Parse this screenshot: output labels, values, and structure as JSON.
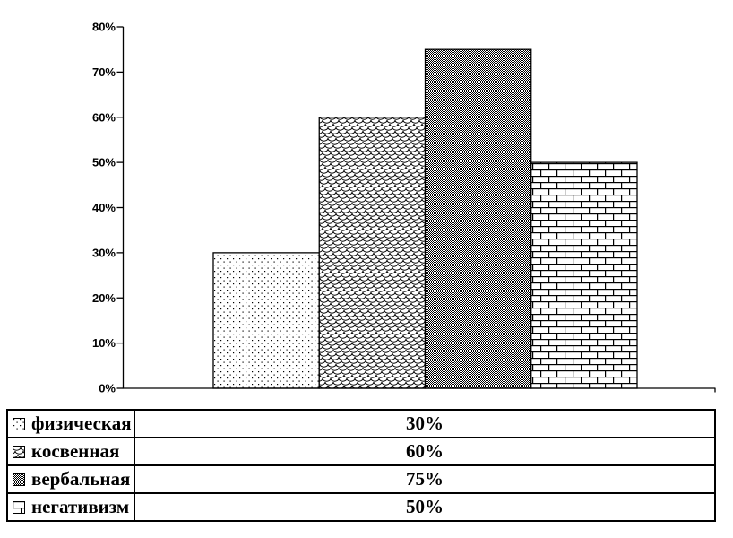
{
  "chart_data": {
    "type": "bar",
    "title": "",
    "xlabel": "",
    "ylabel": "",
    "categories": [
      "физическая",
      "косвенная",
      "вербальная",
      "негативизм"
    ],
    "values": [
      30,
      60,
      75,
      50
    ],
    "value_labels": [
      "30%",
      "60%",
      "75%",
      "50%"
    ],
    "ylim": [
      0,
      80
    ],
    "ytick_step": 10,
    "ytick_labels": [
      "0%",
      "10%",
      "20%",
      "30%",
      "40%",
      "50%",
      "60%",
      "70%",
      "80%"
    ],
    "grid": false,
    "bar_fill_patterns": [
      "sparse-dots",
      "fish-scale",
      "dense-dither-50",
      "brick"
    ],
    "legend_position": "bottom-table"
  },
  "legend_table": {
    "rows": [
      {
        "label": "физическая",
        "value": "30%",
        "swatch": "sparse-dots"
      },
      {
        "label": "косвенная",
        "value": "60%",
        "swatch": "fish-scale"
      },
      {
        "label": "вербальная",
        "value": "75%",
        "swatch": "dense-dither-50"
      },
      {
        "label": "негативизм",
        "value": "50%",
        "swatch": "brick"
      }
    ]
  },
  "colors": {
    "ink": "#000000",
    "background": "#ffffff"
  }
}
